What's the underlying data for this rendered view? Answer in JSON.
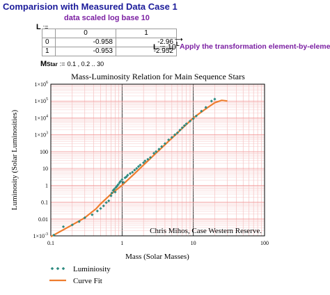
{
  "header": {
    "title": "Comparision with Measured Data Case 1",
    "subtitle": "data scaled log base 10"
  },
  "matrix": {
    "name": "L",
    "assign": ":=",
    "col_headers": [
      "0",
      "1"
    ],
    "rows": [
      {
        "index": "0",
        "values": [
          "-0.958",
          "-2.96"
        ]
      },
      {
        "index": "1",
        "values": [
          "-0.953",
          "-2.952"
        ]
      }
    ]
  },
  "transform": {
    "lhs": "L",
    "assign": ":=",
    "base": "10",
    "exponent": "L",
    "note": "Apply the transformation element-by-element"
  },
  "mstar": {
    "name": "M",
    "subscript": "Star",
    "assign": ":=",
    "range": "0.1 , 0.2 .. 30"
  },
  "chart_data": {
    "type": "scatter",
    "title": "Mass-Luminosity Relation for Main Sequence Stars",
    "xlabel": "Mass (Solar Masses)",
    "ylabel": "Luminosity (Solar Luminosities)",
    "xscale": "log",
    "yscale": "log",
    "xlim": [
      0.1,
      100
    ],
    "ylim": [
      0.001,
      1000000
    ],
    "x_ticks": [
      "0.1",
      "1",
      "10",
      "100"
    ],
    "y_ticks": [
      {
        "base": "1×10",
        "exp": "-3"
      },
      {
        "base": "0.01",
        "exp": ""
      },
      {
        "base": "0.1",
        "exp": ""
      },
      {
        "base": "1",
        "exp": ""
      },
      {
        "base": "10",
        "exp": ""
      },
      {
        "base": "100",
        "exp": ""
      },
      {
        "base": "1×10",
        "exp": "3"
      },
      {
        "base": "1×10",
        "exp": "4"
      },
      {
        "base": "1×10",
        "exp": "5"
      },
      {
        "base": "1×10",
        "exp": "6"
      }
    ],
    "annotation": "Chris Mihos, Case Western Reserve.",
    "grid": true,
    "legend_position": "bottom-left",
    "series": [
      {
        "name": "Luminiosity",
        "kind": "points",
        "color": "#2e8b80",
        "points": [
          [
            0.11,
            0.0011
          ],
          [
            0.15,
            0.0035
          ],
          [
            0.2,
            0.0045
          ],
          [
            0.25,
            0.007
          ],
          [
            0.3,
            0.012
          ],
          [
            0.38,
            0.018
          ],
          [
            0.45,
            0.03
          ],
          [
            0.5,
            0.042
          ],
          [
            0.55,
            0.06
          ],
          [
            0.6,
            0.095
          ],
          [
            0.65,
            0.12
          ],
          [
            0.7,
            0.24
          ],
          [
            0.72,
            0.35
          ],
          [
            0.75,
            0.5
          ],
          [
            0.78,
            0.6
          ],
          [
            0.8,
            0.4
          ],
          [
            0.82,
            0.75
          ],
          [
            0.85,
            0.9
          ],
          [
            0.88,
            1.1
          ],
          [
            0.92,
            1.4
          ],
          [
            0.95,
            1.7
          ],
          [
            1.0,
            2.2
          ],
          [
            1.05,
            1.5
          ],
          [
            1.1,
            2.8
          ],
          [
            1.15,
            3.2
          ],
          [
            1.2,
            4.0
          ],
          [
            1.3,
            5.0
          ],
          [
            1.4,
            6.0
          ],
          [
            1.5,
            8.0
          ],
          [
            1.6,
            10
          ],
          [
            1.7,
            13
          ],
          [
            1.8,
            16
          ],
          [
            2.0,
            22
          ],
          [
            2.1,
            28
          ],
          [
            2.3,
            35
          ],
          [
            2.5,
            45
          ],
          [
            2.8,
            80
          ],
          [
            3.0,
            100
          ],
          [
            3.3,
            140
          ],
          [
            3.6,
            200
          ],
          [
            4.0,
            300
          ],
          [
            4.5,
            500
          ],
          [
            5.0,
            700
          ],
          [
            5.5,
            1000
          ],
          [
            6.0,
            1300
          ],
          [
            6.5,
            1900
          ],
          [
            7.0,
            2600
          ],
          [
            7.5,
            3500
          ],
          [
            8.0,
            4500
          ],
          [
            9.0,
            6500
          ],
          [
            10.0,
            9000
          ],
          [
            11.0,
            13000
          ],
          [
            13.0,
            25000
          ],
          [
            15.0,
            42000
          ],
          [
            18.0,
            100000
          ],
          [
            20.0,
            130000
          ]
        ]
      },
      {
        "name": "Curve Fit",
        "kind": "line",
        "color": "#ee7d2e",
        "points": [
          [
            0.1,
            0.0009
          ],
          [
            0.2,
            0.0045
          ],
          [
            0.3,
            0.012
          ],
          [
            0.43,
            0.04
          ],
          [
            0.5,
            0.08
          ],
          [
            0.7,
            0.3
          ],
          [
            1.0,
            1.0
          ],
          [
            1.5,
            5.0
          ],
          [
            2.0,
            16
          ],
          [
            3.0,
            81
          ],
          [
            5.0,
            625
          ],
          [
            7.0,
            2400
          ],
          [
            10.0,
            10000
          ],
          [
            15.0,
            35000
          ],
          [
            20.0,
            80000
          ],
          [
            25.0,
            110000
          ],
          [
            30.0,
            100000
          ]
        ]
      }
    ]
  }
}
